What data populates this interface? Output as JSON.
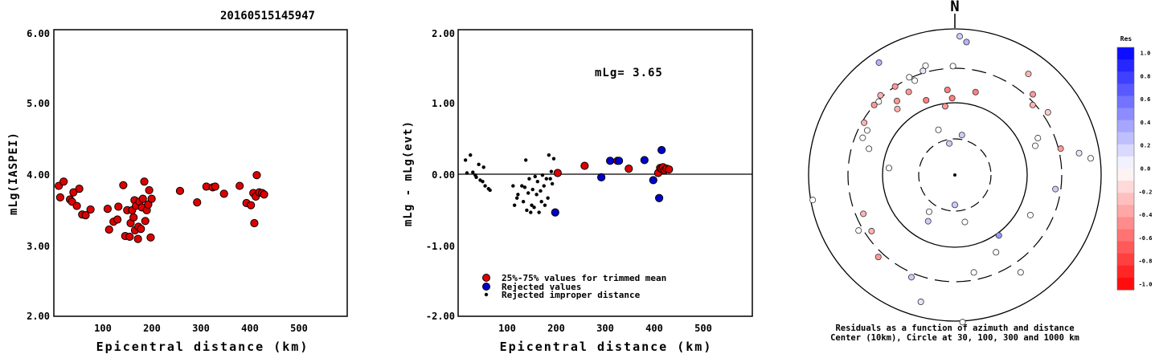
{
  "title": "20160515145947",
  "chart_data": [
    {
      "type": "scatter",
      "xlabel": "Epicentral distance (km)",
      "ylabel": "mLg(IASPEI)",
      "xlim": [
        0,
        600
      ],
      "ylim": [
        2.0,
        6.0
      ],
      "x_ticks": [
        "100",
        "200",
        "300",
        "400",
        "500"
      ],
      "y_ticks": [
        "2.00",
        "3.00",
        "4.00",
        "5.00",
        "6.00"
      ],
      "series": [
        {
          "color": "#dd0000",
          "points": [
            [
              10,
              3.82
            ],
            [
              13,
              3.66
            ],
            [
              20,
              3.88
            ],
            [
              33,
              3.63
            ],
            [
              37,
              3.6
            ],
            [
              40,
              3.73
            ],
            [
              47,
              3.54
            ],
            [
              52,
              3.78
            ],
            [
              58,
              3.42
            ],
            [
              65,
              3.41
            ],
            [
              75,
              3.49
            ],
            [
              110,
              3.5
            ],
            [
              113,
              3.21
            ],
            [
              122,
              3.32
            ],
            [
              130,
              3.35
            ],
            [
              132,
              3.53
            ],
            [
              142,
              3.83
            ],
            [
              146,
              3.12
            ],
            [
              150,
              3.48
            ],
            [
              155,
              3.11
            ],
            [
              157,
              3.3
            ],
            [
              160,
              3.48
            ],
            [
              163,
              3.38
            ],
            [
              165,
              3.62
            ],
            [
              166,
              3.2
            ],
            [
              168,
              3.54
            ],
            [
              172,
              3.08
            ],
            [
              173,
              3.25
            ],
            [
              175,
              3.6
            ],
            [
              178,
              3.22
            ],
            [
              180,
              3.52
            ],
            [
              182,
              3.64
            ],
            [
              185,
              3.88
            ],
            [
              187,
              3.33
            ],
            [
              190,
              3.48
            ],
            [
              193,
              3.56
            ],
            [
              195,
              3.76
            ],
            [
              198,
              3.1
            ],
            [
              200,
              3.64
            ],
            [
              258,
              3.75
            ],
            [
              293,
              3.59
            ],
            [
              312,
              3.81
            ],
            [
              325,
              3.8
            ],
            [
              330,
              3.81
            ],
            [
              348,
              3.71
            ],
            [
              380,
              3.82
            ],
            [
              394,
              3.58
            ],
            [
              403,
              3.55
            ],
            [
              408,
              3.72
            ],
            [
              410,
              3.3
            ],
            [
              413,
              3.67
            ],
            [
              415,
              3.97
            ],
            [
              420,
              3.73
            ],
            [
              426,
              3.72
            ],
            [
              430,
              3.7
            ]
          ]
        }
      ]
    },
    {
      "type": "scatter",
      "xlabel": "Epicentral distance (km)",
      "ylabel": "mLg - mLg(evt)",
      "xlim": [
        0,
        600
      ],
      "ylim": [
        -2.0,
        2.0
      ],
      "x_ticks": [
        "100",
        "200",
        "300",
        "400",
        "500"
      ],
      "y_ticks": [
        "-2.00",
        "-1.00",
        "0.00",
        "1.00",
        "2.00"
      ],
      "annotation": "mLg= 3.65",
      "legend": [
        {
          "label": "25%-75% values for trimmed mean",
          "color": "#dd0000"
        },
        {
          "label": "Rejected values",
          "color": "#0000cc"
        },
        {
          "label": "Rejected improper distance",
          "color": "#000000"
        }
      ],
      "series": [
        {
          "name": "25%-75% values for trimmed mean",
          "color": "#dd0000",
          "points": [
            [
              203,
              0.0
            ],
            [
              258,
              0.1
            ],
            [
              325,
              0.17
            ],
            [
              348,
              0.06
            ],
            [
              408,
              0.0
            ],
            [
              412,
              0.07
            ],
            [
              415,
              0.06
            ],
            [
              418,
              0.08
            ],
            [
              421,
              0.04
            ],
            [
              425,
              0.06
            ],
            [
              430,
              0.05
            ]
          ]
        },
        {
          "name": "Rejected values",
          "color": "#0000cc",
          "points": [
            [
              198,
              -0.55
            ],
            [
              292,
              -0.06
            ],
            [
              310,
              0.17
            ],
            [
              328,
              0.17
            ],
            [
              380,
              0.18
            ],
            [
              398,
              -0.1
            ],
            [
              410,
              -0.35
            ],
            [
              415,
              0.32
            ]
          ]
        },
        {
          "name": "Rejected improper distance",
          "color": "#000000",
          "points": [
            [
              15,
              0.18
            ],
            [
              18,
              0.0
            ],
            [
              25,
              0.25
            ],
            [
              30,
              0.01
            ],
            [
              35,
              -0.03
            ],
            [
              37,
              -0.06
            ],
            [
              42,
              0.12
            ],
            [
              45,
              -0.1
            ],
            [
              50,
              -0.12
            ],
            [
              52,
              0.08
            ],
            [
              55,
              -0.18
            ],
            [
              62,
              -0.22
            ],
            [
              65,
              -0.24
            ],
            [
              112,
              -0.18
            ],
            [
              115,
              -0.45
            ],
            [
              120,
              -0.35
            ],
            [
              122,
              -0.3
            ],
            [
              130,
              -0.18
            ],
            [
              133,
              -0.4
            ],
            [
              136,
              -0.2
            ],
            [
              138,
              0.18
            ],
            [
              140,
              -0.52
            ],
            [
              143,
              -0.28
            ],
            [
              145,
              -0.08
            ],
            [
              148,
              -0.55
            ],
            [
              150,
              -0.45
            ],
            [
              152,
              -0.23
            ],
            [
              155,
              -0.48
            ],
            [
              157,
              -0.05
            ],
            [
              160,
              -0.3
            ],
            [
              162,
              -0.12
            ],
            [
              165,
              -0.55
            ],
            [
              168,
              -0.25
            ],
            [
              170,
              -0.4
            ],
            [
              172,
              -0.03
            ],
            [
              175,
              -0.18
            ],
            [
              177,
              -0.45
            ],
            [
              180,
              -0.08
            ],
            [
              183,
              -0.35
            ],
            [
              185,
              0.25
            ],
            [
              188,
              -0.08
            ],
            [
              190,
              0.02
            ],
            [
              192,
              -0.15
            ],
            [
              195,
              0.2
            ]
          ]
        }
      ]
    },
    {
      "type": "polar_scatter",
      "north_label": "N",
      "caption": [
        "Residuals as a function of azimuth and distance",
        "Center (10km), Circle at 30, 100, 300 and 1000 km"
      ],
      "colorbar": {
        "title": "Res",
        "ticks": [
          "1.0",
          "0.8",
          "0.6",
          "0.4",
          "0.2",
          "0.0",
          "-0.2",
          "-0.4",
          "-0.6",
          "-0.8",
          "-1.0"
        ],
        "max_color": "#0000ff",
        "zero_color": "#ffffff",
        "min_color": "#ff0000"
      },
      "points": [
        [
          2,
          1.3,
          0.2
        ],
        [
          5,
          1.25,
          0.3
        ],
        [
          14,
          0.8,
          -0.5
        ],
        [
          36,
          1.17,
          -0.3
        ],
        [
          44,
          1.05,
          -0.4
        ],
        [
          48,
          0.98,
          -0.3
        ],
        [
          56,
          1.05,
          -0.2
        ],
        [
          66,
          0.85,
          0.0
        ],
        [
          70,
          0.8,
          0.0
        ],
        [
          76,
          1.02,
          -0.4
        ],
        [
          80,
          1.18,
          0.1
        ],
        [
          83,
          1.28,
          0.0
        ],
        [
          98,
          0.95,
          0.2
        ],
        [
          118,
          0.8,
          0.0
        ],
        [
          146,
          1.1,
          0.0
        ],
        [
          144,
          0.7,
          0.4
        ],
        [
          152,
          0.82,
          0.0
        ],
        [
          169,
          0.93,
          0.0
        ],
        [
          168,
          0.45,
          0.0
        ],
        [
          177,
          1.38,
          0.0
        ],
        [
          180,
          0.28,
          0.2
        ],
        [
          195,
          1.23,
          0.1
        ],
        [
          203,
          1.04,
          0.2
        ],
        [
          210,
          0.5,
          0.2
        ],
        [
          215,
          0.42,
          0.0
        ],
        [
          223,
          1.05,
          -0.4
        ],
        [
          236,
          0.94,
          -0.3
        ],
        [
          240,
          1.04,
          0.0
        ],
        [
          247,
          0.93,
          -0.3
        ],
        [
          260,
          1.35,
          0.0
        ],
        [
          276,
          0.62,
          0.0
        ],
        [
          287,
          0.84,
          0.0
        ],
        [
          292,
          0.93,
          0.0
        ],
        [
          297,
          0.92,
          0.0
        ],
        [
          300,
          0.98,
          -0.3
        ],
        [
          311,
          1.0,
          -0.4
        ],
        [
          314,
          0.99,
          0.0
        ],
        [
          317,
          1.02,
          -0.3
        ],
        [
          319,
          0.82,
          -0.3
        ],
        [
          322,
          0.88,
          -0.4
        ],
        [
          326,
          1.27,
          0.3
        ],
        [
          326,
          1.0,
          -0.4
        ],
        [
          331,
          0.89,
          -0.4
        ],
        [
          335,
          1.01,
          0.0
        ],
        [
          337,
          0.96,
          0.0
        ],
        [
          339,
          0.75,
          -0.5
        ],
        [
          343,
          1.02,
          0.1
        ],
        [
          345,
          1.06,
          0.0
        ],
        [
          350,
          0.3,
          0.2
        ],
        [
          352,
          0.65,
          -0.4
        ],
        [
          355,
          0.8,
          -0.5
        ],
        [
          358,
          0.72,
          -0.5
        ],
        [
          359,
          1.02,
          0.0
        ],
        [
          10,
          0.38,
          0.2
        ],
        [
          340,
          0.45,
          0.0
        ]
      ]
    }
  ]
}
